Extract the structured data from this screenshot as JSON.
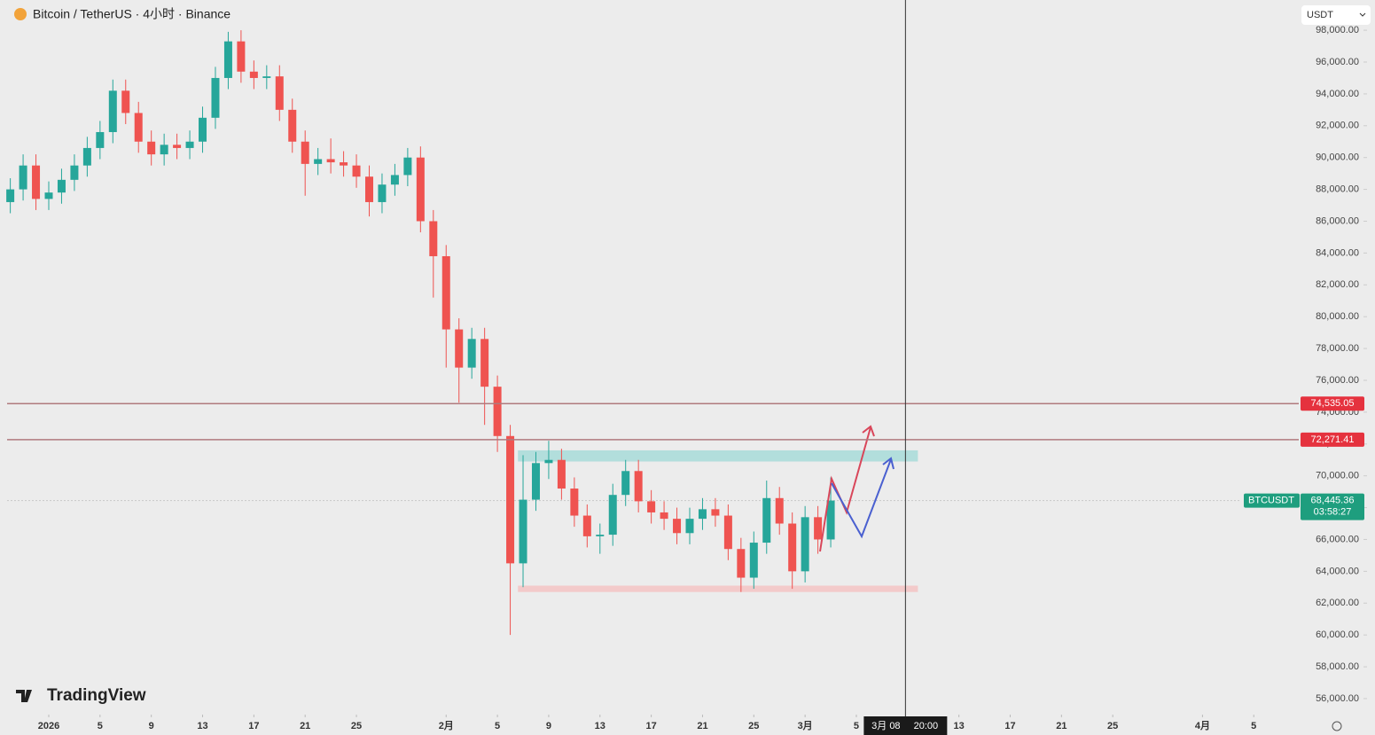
{
  "header": {
    "title": "Bitcoin / TetherUS · 4小时 · Binance",
    "currency": "USDT",
    "watermark": "TradingView"
  },
  "chart_data": {
    "type": "candlestick",
    "up_color": "#26a69a",
    "down_color": "#ef5350",
    "x": [
      -2,
      -1,
      0,
      1,
      2,
      3,
      4,
      5,
      6,
      7,
      8,
      9,
      10,
      11,
      12,
      13,
      14,
      15,
      16,
      17,
      18,
      19,
      20,
      21,
      22,
      23,
      24,
      25,
      26,
      27,
      28,
      29,
      30,
      31,
      32,
      33,
      34,
      35,
      36,
      37,
      38,
      39,
      40,
      41,
      42,
      43,
      44,
      45,
      46,
      47,
      48,
      49,
      50,
      51,
      52,
      53,
      54,
      55,
      56,
      57,
      58,
      59,
      60,
      61,
      62
    ],
    "open": [
      87200,
      88000,
      89500,
      87400,
      87800,
      88600,
      89500,
      90600,
      91600,
      94200,
      92800,
      91000,
      90200,
      90800,
      90600,
      91000,
      92500,
      95000,
      97300,
      95400,
      95000,
      95100,
      93000,
      91000,
      89600,
      89900,
      89700,
      89500,
      88800,
      87200,
      88300,
      88900,
      90000,
      86000,
      83800,
      79200,
      76800,
      78600,
      75600,
      72500,
      64500,
      68500,
      70800,
      71000,
      69200,
      67500,
      66200,
      66300,
      68800,
      70300,
      68400,
      67700,
      67300,
      66400,
      67300,
      67900,
      67500,
      65400,
      63600,
      65800,
      68600,
      67000,
      64000,
      67400,
      66000
    ],
    "high": [
      88700,
      90200,
      90200,
      88500,
      89300,
      90200,
      91300,
      92300,
      94900,
      94900,
      93500,
      91700,
      91500,
      91500,
      91700,
      93200,
      95700,
      97900,
      98000,
      96100,
      95800,
      95800,
      93700,
      91700,
      90600,
      91200,
      90400,
      90200,
      89500,
      89000,
      89600,
      90600,
      90700,
      86700,
      84500,
      79900,
      79300,
      79300,
      76300,
      73200,
      71300,
      71500,
      72200,
      71700,
      69900,
      68200,
      67000,
      69500,
      71000,
      71000,
      69100,
      68400,
      68000,
      68000,
      68600,
      68600,
      68200,
      66100,
      66500,
      69700,
      69300,
      67700,
      68100,
      68100,
      69900
    ],
    "low": [
      86500,
      87300,
      86700,
      86700,
      87100,
      87900,
      88800,
      89900,
      90900,
      92100,
      90300,
      89500,
      89500,
      89900,
      89900,
      90300,
      91800,
      94300,
      94700,
      94300,
      94300,
      92300,
      90300,
      87600,
      88900,
      89000,
      88800,
      88100,
      86300,
      86500,
      87600,
      88200,
      85300,
      81200,
      76800,
      74600,
      76100,
      73200,
      71500,
      60000,
      63000,
      67800,
      69800,
      68500,
      66800,
      65500,
      65100,
      65600,
      68100,
      67700,
      67000,
      66600,
      65700,
      65700,
      66600,
      66800,
      64700,
      62700,
      62900,
      65100,
      66300,
      62900,
      63300,
      65100,
      65500
    ],
    "close": [
      88000,
      89500,
      87400,
      87800,
      88600,
      89500,
      90600,
      91600,
      94200,
      92800,
      91000,
      90200,
      90800,
      90600,
      91000,
      92500,
      95000,
      97300,
      95400,
      95000,
      95100,
      93000,
      91000,
      89600,
      89900,
      89700,
      89500,
      88800,
      87200,
      88300,
      88900,
      90000,
      86000,
      83800,
      79200,
      76800,
      78600,
      75600,
      72500,
      64500,
      68500,
      70800,
      71000,
      69200,
      67500,
      66200,
      66300,
      68800,
      70300,
      68400,
      67700,
      67300,
      66400,
      67300,
      67900,
      67500,
      65400,
      63600,
      65800,
      68600,
      67000,
      64000,
      67400,
      66000,
      68445.36
    ],
    "xlim": [
      -2.2,
      98.5
    ],
    "xticks": [
      {
        "value": 1,
        "label": "2026"
      },
      5,
      9,
      13,
      17,
      21,
      25,
      {
        "value": 32,
        "label": "2月"
      },
      {
        "value": 36,
        "label": "5"
      },
      {
        "value": 40,
        "label": "9"
      },
      {
        "value": 44,
        "label": "13"
      },
      {
        "value": 48,
        "label": "17"
      },
      {
        "value": 52,
        "label": "21"
      },
      {
        "value": 56,
        "label": "25"
      },
      {
        "value": 60,
        "label": "3月"
      },
      {
        "value": 64,
        "label": "5"
      },
      {
        "value": 72,
        "label": "13"
      },
      {
        "value": 76,
        "label": "17"
      },
      {
        "value": 80,
        "label": "21"
      },
      {
        "value": 84,
        "label": "25"
      },
      {
        "value": 91,
        "label": "4月"
      },
      {
        "value": 95,
        "label": "5"
      }
    ],
    "ylim": [
      55050,
      99900
    ],
    "yticks": [
      {
        "value": 56000,
        "label": "56,000.00"
      },
      {
        "value": 58000,
        "label": "58,000.00"
      },
      {
        "value": 60000,
        "label": "60,000.00"
      },
      {
        "value": 62000,
        "label": "62,000.00"
      },
      {
        "value": 64000,
        "label": "64,000.00"
      },
      {
        "value": 66000,
        "label": "66,000.00"
      },
      {
        "value": 68000,
        "label": "68,000.00"
      },
      {
        "value": 70000,
        "label": "70,000.00"
      },
      {
        "value": 72000,
        "label": "72,000.00"
      },
      {
        "value": 74000,
        "label": "74,000.00"
      },
      {
        "value": 76000,
        "label": "76,000.00"
      },
      {
        "value": 78000,
        "label": "78,000.00"
      },
      {
        "value": 80000,
        "label": "80,000.00"
      },
      {
        "value": 82000,
        "label": "82,000.00"
      },
      {
        "value": 84000,
        "label": "84,000.00"
      },
      {
        "value": 86000,
        "label": "86,000.00"
      },
      {
        "value": 88000,
        "label": "88,000.00"
      },
      {
        "value": 90000,
        "label": "90,000.00"
      },
      {
        "value": 92000,
        "label": "92,000.00"
      },
      {
        "value": 94000,
        "label": "94,000.00"
      },
      {
        "value": 96000,
        "label": "96,000.00"
      },
      {
        "value": 98000,
        "label": "98,000.00"
      }
    ],
    "hlines": [
      {
        "value": 74535.05,
        "label": "74,535.05",
        "color": "#e5323e"
      },
      {
        "value": 72271.41,
        "label": "72,271.41",
        "color": "#e5323e"
      }
    ],
    "zones": [
      {
        "x0": 37.6,
        "x1": 68.8,
        "low": 70900,
        "high": 71600,
        "color": "#a8dcd9"
      },
      {
        "x0": 37.6,
        "x1": 68.8,
        "low": 62700,
        "high": 63100,
        "color": "#f4c4c4"
      }
    ],
    "last_price": {
      "name": "BTCUSDT",
      "value": 68445.36,
      "label": "68,445.36",
      "countdown": "03:58:27",
      "color": "#1e9e7e"
    },
    "crosshair": {
      "x": 67.83,
      "date": "3月 08",
      "time": "20:00"
    }
  }
}
